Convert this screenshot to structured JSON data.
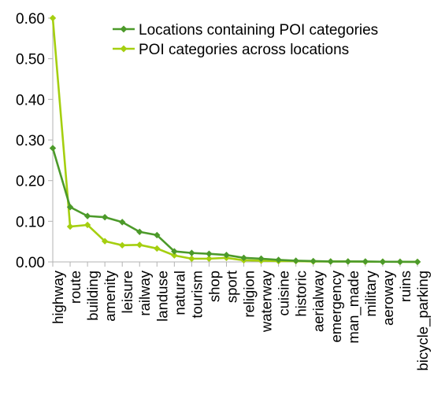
{
  "chart_data": {
    "type": "line",
    "categories": [
      "highway",
      "route",
      "building",
      "amenity",
      "leisure",
      "railway",
      "landuse",
      "natural",
      "tourism",
      "shop",
      "sport",
      "religion",
      "waterway",
      "cuisine",
      "historic",
      "aerialway",
      "emergency",
      "man_made",
      "military",
      "aeroway",
      "ruins",
      "bicycle_parking"
    ],
    "series": [
      {
        "name": "Locations containing POI categories",
        "color": "#4c9a2a",
        "values": [
          0.28,
          0.135,
          0.113,
          0.11,
          0.098,
          0.074,
          0.066,
          0.026,
          0.022,
          0.02,
          0.017,
          0.01,
          0.008,
          0.005,
          0.003,
          0.002,
          0.001,
          0.001,
          0.001,
          0.0005,
          0.0003,
          0.0002
        ]
      },
      {
        "name": "POI categories across locations",
        "color": "#a5cf10",
        "values": [
          0.6,
          0.087,
          0.091,
          0.051,
          0.041,
          0.042,
          0.033,
          0.016,
          0.008,
          0.008,
          0.01,
          0.004,
          0.003,
          0.002,
          0.002,
          0.001,
          0.001,
          0.001,
          0.0005,
          0.0005,
          0.0003,
          0.0002
        ]
      }
    ],
    "y_ticks": [
      "0.00",
      "0.10",
      "0.20",
      "0.30",
      "0.40",
      "0.50",
      "0.60"
    ],
    "ylim": [
      0,
      0.6
    ],
    "legend_position": "top-right",
    "grid": false
  }
}
